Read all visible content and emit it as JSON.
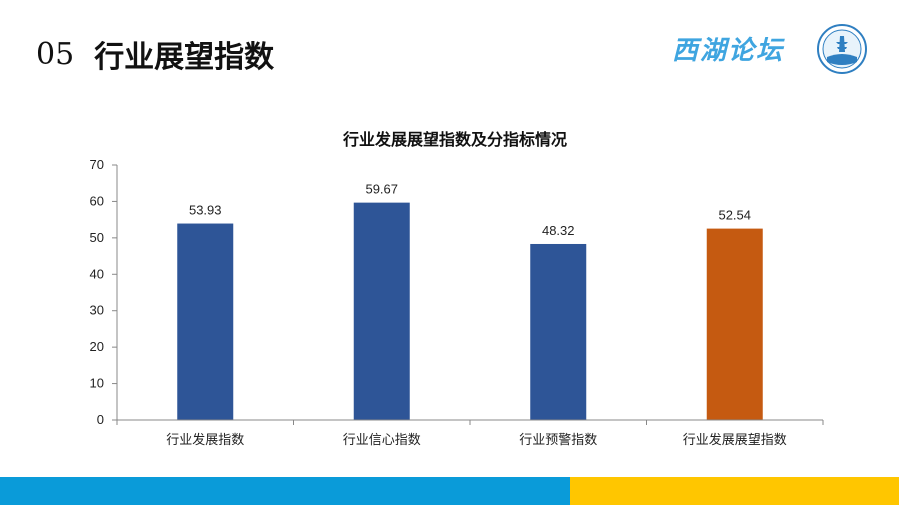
{
  "slide": {
    "number": "05",
    "title": "行业展望指数",
    "brand": "西湖论坛"
  },
  "colors": {
    "bar_primary": "#2e5597",
    "bar_highlight": "#c55a11",
    "footer_blue": "#0a9bd9",
    "footer_yellow": "#ffc600",
    "brand": "#3fa5e0"
  },
  "chart_data": {
    "type": "bar",
    "title": "行业发展展望指数及分指标情况",
    "categories": [
      "行业发展指数",
      "行业信心指数",
      "行业预警指数",
      "行业发展展望指数"
    ],
    "values": [
      53.93,
      59.67,
      48.32,
      52.54
    ],
    "value_labels": [
      "53.93",
      "59.67",
      "48.32",
      "52.54"
    ],
    "highlight_index": 3,
    "ylim": [
      0,
      70
    ],
    "yticks": [
      "0",
      "10",
      "20",
      "30",
      "40",
      "50",
      "60",
      "70"
    ],
    "grid": false,
    "legend": "none"
  }
}
